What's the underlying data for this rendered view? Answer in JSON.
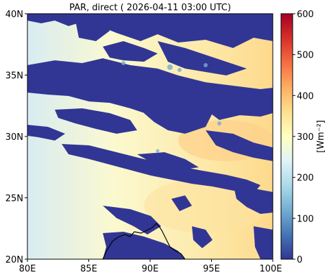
{
  "title": "PAR, direct ( 2026-04-11 03:00 UTC)",
  "map": {
    "lon_range": [
      80,
      100
    ],
    "lat_range": [
      20,
      40
    ],
    "x_ticks": [
      "80E",
      "85E",
      "90E",
      "95E",
      "100E"
    ],
    "y_ticks": [
      "20N",
      "25N",
      "30N",
      "35N",
      "40N"
    ],
    "field": "direct photosynthetically active radiation",
    "cloud_color": "#313695"
  },
  "colorbar": {
    "label": "[Wm$^{-2}$]",
    "label_display": "[Wm⁻²]",
    "range": [
      0,
      600
    ],
    "ticks": [
      "0",
      "100",
      "200",
      "300",
      "400",
      "500",
      "600"
    ],
    "colormap": "RdYlBu_r",
    "colors": [
      "#313695",
      "#4575b4",
      "#74add1",
      "#abd9e9",
      "#e0f3f8",
      "#ffffbf",
      "#fee090",
      "#fdae61",
      "#f46d43",
      "#d73027",
      "#a50026"
    ]
  }
}
